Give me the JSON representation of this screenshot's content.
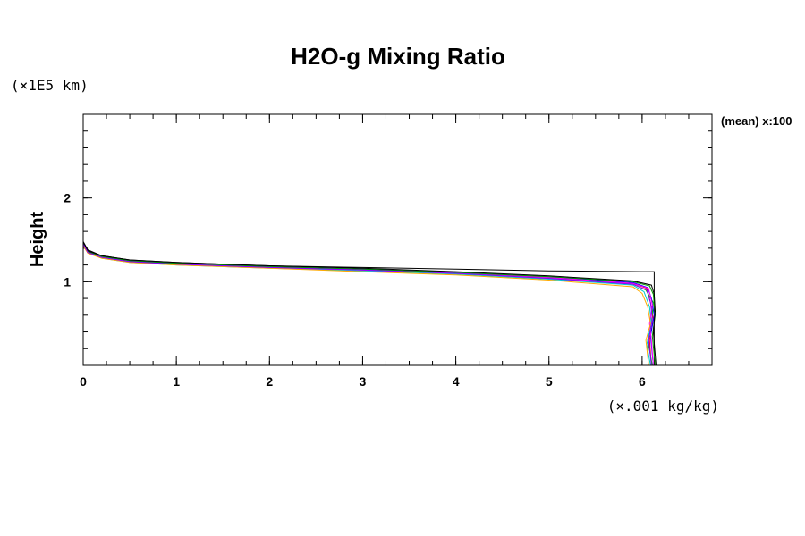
{
  "chart_data": {
    "type": "line",
    "title": "H2O-g Mixing Ratio",
    "ylabel": "Height",
    "xlabel": "",
    "x_unit_label": "(×.001 kg/kg)",
    "y_unit_label": "(×1E5 km)",
    "side_note": "(mean) x:100",
    "xlim": [
      0,
      6.75
    ],
    "ylim": [
      0,
      3.0
    ],
    "x_ticks": [
      0,
      1,
      2,
      3,
      4,
      5,
      6
    ],
    "x_tick_labels": [
      "0",
      "1",
      "2",
      "3",
      "4",
      "5",
      "6"
    ],
    "y_ticks": [
      1,
      2
    ],
    "y_tick_labels": [
      "1",
      "2"
    ],
    "x_minor_step": 0.25,
    "y_minor_step": 0.2,
    "grid": false,
    "legend": "none",
    "series": [
      {
        "color": "#000000",
        "x": [
          6.13,
          6.13,
          6.0,
          5.0,
          4.0,
          3.0,
          2.0,
          1.0,
          0.5,
          0.2,
          0.05,
          0.0,
          0.0
        ],
        "y": [
          0.0,
          1.12,
          1.12,
          1.13,
          1.15,
          1.17,
          1.19,
          1.23,
          1.26,
          1.31,
          1.38,
          1.48,
          3.0
        ]
      },
      {
        "color": "#ff0000",
        "x": [
          6.1,
          6.08,
          6.12,
          6.09,
          6.05,
          5.9,
          5.0,
          4.0,
          3.0,
          2.0,
          1.0,
          0.5,
          0.2,
          0.05,
          0.0,
          0.0
        ],
        "y": [
          0.0,
          0.3,
          0.55,
          0.75,
          0.92,
          0.98,
          1.05,
          1.1,
          1.14,
          1.17,
          1.21,
          1.24,
          1.29,
          1.36,
          1.45,
          3.0
        ]
      },
      {
        "color": "#00bb00",
        "x": [
          6.11,
          6.06,
          6.1,
          6.12,
          6.04,
          5.9,
          5.0,
          4.0,
          3.0,
          2.0,
          1.0,
          0.5,
          0.2,
          0.05,
          0.0,
          0.0
        ],
        "y": [
          0.0,
          0.3,
          0.5,
          0.75,
          0.9,
          0.97,
          1.04,
          1.1,
          1.14,
          1.17,
          1.21,
          1.24,
          1.29,
          1.35,
          1.44,
          3.0
        ]
      },
      {
        "color": "#0000ff",
        "x": [
          6.12,
          6.09,
          6.13,
          6.1,
          6.06,
          5.9,
          5.0,
          4.0,
          3.0,
          2.0,
          1.0,
          0.5,
          0.2,
          0.05,
          0.0,
          0.0
        ],
        "y": [
          0.0,
          0.35,
          0.6,
          0.8,
          0.93,
          0.99,
          1.06,
          1.11,
          1.15,
          1.18,
          1.22,
          1.25,
          1.3,
          1.37,
          1.46,
          3.0
        ]
      },
      {
        "color": "#00cccc",
        "x": [
          6.09,
          6.05,
          6.1,
          6.08,
          6.02,
          5.9,
          5.0,
          4.0,
          3.0,
          2.0,
          1.0,
          0.5,
          0.2,
          0.05,
          0.0,
          0.0
        ],
        "y": [
          0.0,
          0.25,
          0.5,
          0.7,
          0.88,
          0.96,
          1.03,
          1.09,
          1.13,
          1.16,
          1.2,
          1.23,
          1.28,
          1.35,
          1.44,
          3.0
        ]
      },
      {
        "color": "#ff00ff",
        "x": [
          6.12,
          6.1,
          6.08,
          6.11,
          6.07,
          5.9,
          5.0,
          4.0,
          3.0,
          2.0,
          1.0,
          0.5,
          0.2,
          0.05,
          0.0,
          0.0
        ],
        "y": [
          0.0,
          0.3,
          0.5,
          0.72,
          0.92,
          0.98,
          1.05,
          1.1,
          1.14,
          1.17,
          1.21,
          1.24,
          1.29,
          1.36,
          1.45,
          3.0
        ]
      },
      {
        "color": "#ffaa00",
        "x": [
          6.07,
          6.04,
          6.09,
          6.06,
          6.0,
          5.9,
          5.0,
          4.0,
          3.0,
          2.0,
          1.0,
          0.5,
          0.2,
          0.05,
          0.0,
          0.0
        ],
        "y": [
          0.0,
          0.3,
          0.5,
          0.7,
          0.86,
          0.94,
          1.02,
          1.08,
          1.12,
          1.16,
          1.2,
          1.23,
          1.28,
          1.34,
          1.43,
          3.0
        ]
      },
      {
        "color": "#009900",
        "x": [
          6.14,
          6.11,
          6.14,
          6.12,
          6.08,
          5.9,
          5.0,
          4.0,
          3.0,
          2.0,
          1.0,
          0.5,
          0.2,
          0.05,
          0.0,
          0.0
        ],
        "y": [
          0.0,
          0.35,
          0.6,
          0.85,
          0.95,
          1.0,
          1.06,
          1.11,
          1.15,
          1.18,
          1.22,
          1.25,
          1.3,
          1.36,
          1.46,
          3.0
        ]
      },
      {
        "color": "#000000",
        "x": [
          6.15,
          6.12,
          6.14,
          6.13,
          6.1,
          5.9,
          5.0,
          4.0,
          3.0,
          2.0,
          1.0,
          0.5,
          0.2,
          0.05,
          0.0,
          0.0
        ],
        "y": [
          0.0,
          0.4,
          0.65,
          0.85,
          0.96,
          1.01,
          1.07,
          1.12,
          1.16,
          1.19,
          1.23,
          1.26,
          1.31,
          1.37,
          1.47,
          3.0
        ]
      },
      {
        "color": "#8800ff",
        "x": [
          6.1,
          6.07,
          6.11,
          6.09,
          6.05,
          5.9,
          5.0,
          4.0,
          3.0,
          2.0,
          1.0,
          0.5,
          0.2,
          0.05,
          0.0,
          0.0
        ],
        "y": [
          0.0,
          0.3,
          0.55,
          0.75,
          0.9,
          0.97,
          1.04,
          1.1,
          1.14,
          1.17,
          1.21,
          1.24,
          1.29,
          1.35,
          1.45,
          3.0
        ]
      }
    ]
  }
}
